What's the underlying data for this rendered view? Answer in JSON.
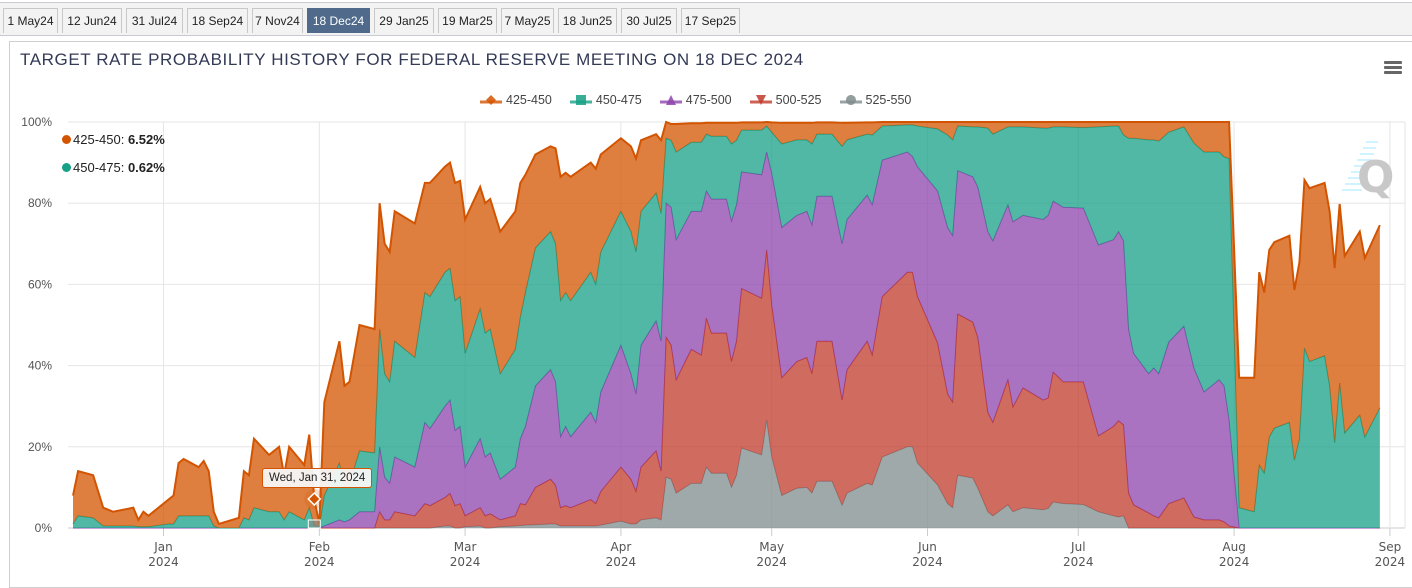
{
  "tabs": [
    {
      "label": "1 May24",
      "active": false
    },
    {
      "label": "12 Jun24",
      "active": false
    },
    {
      "label": "31 Jul24",
      "active": false
    },
    {
      "label": "18 Sep24",
      "active": false
    },
    {
      "label": "7 Nov24",
      "active": false
    },
    {
      "label": "18 Dec24",
      "active": true
    },
    {
      "label": "29 Jan25",
      "active": false
    },
    {
      "label": "19 Mar25",
      "active": false
    },
    {
      "label": "7 May25",
      "active": false
    },
    {
      "label": "18 Jun25",
      "active": false
    },
    {
      "label": "30 Jul25",
      "active": false
    },
    {
      "label": "17 Sep25",
      "active": false
    }
  ],
  "menu_icon": "hamburger-menu-icon",
  "watermark": "Q",
  "hover_readout": {
    "items": [
      {
        "series": "425-450",
        "value": "6.52%",
        "color": "#d35400"
      },
      {
        "series": "450-475",
        "value": "0.62%",
        "color": "#16a085"
      }
    ],
    "date": "Wed, Jan 31, 2024"
  },
  "chart_data": {
    "type": "area",
    "stacked": true,
    "title": "TARGET RATE PROBABILITY HISTORY FOR FEDERAL RESERVE MEETING ON 18 DEC 2024",
    "xlabel": "",
    "ylabel": "",
    "legend_position": "top-center",
    "grid": true,
    "ylim": [
      0,
      100
    ],
    "y_ticks": [
      "0%",
      "20%",
      "40%",
      "60%",
      "80%",
      "100%"
    ],
    "y_tick_values": [
      0,
      20,
      40,
      60,
      80,
      100
    ],
    "xlim": [
      "2023-12-13",
      "2024-09-04"
    ],
    "x_ticks": [
      {
        "date": "2024-01-01",
        "month": "Jan",
        "year": "2024"
      },
      {
        "date": "2024-02-01",
        "month": "Feb",
        "year": "2024"
      },
      {
        "date": "2024-03-01",
        "month": "Mar",
        "year": "2024"
      },
      {
        "date": "2024-04-01",
        "month": "Apr",
        "year": "2024"
      },
      {
        "date": "2024-05-01",
        "month": "May",
        "year": "2024"
      },
      {
        "date": "2024-06-01",
        "month": "Jun",
        "year": "2024"
      },
      {
        "date": "2024-07-01",
        "month": "Jul",
        "year": "2024"
      },
      {
        "date": "2024-08-01",
        "month": "Aug",
        "year": "2024"
      },
      {
        "date": "2024-09-01",
        "month": "Sep",
        "year": "2024"
      }
    ],
    "series": [
      {
        "name": "425-450",
        "color": "#d35400",
        "marker": "diamond"
      },
      {
        "name": "450-475",
        "color": "#16a085",
        "marker": "square"
      },
      {
        "name": "475-500",
        "color": "#8e44ad",
        "marker": "triangle"
      },
      {
        "name": "500-525",
        "color": "#c0392b",
        "marker": "triangle-down"
      },
      {
        "name": "525-550",
        "color": "#7f8c8d",
        "marker": "circle"
      }
    ],
    "columns": [
      "date",
      "425-450",
      "450-475",
      "475-500",
      "500-525",
      "525-550"
    ],
    "rows": [
      [
        "2023-12-14",
        7,
        1,
        0,
        0,
        0
      ],
      [
        "2023-12-15",
        11,
        3,
        0,
        0,
        0
      ],
      [
        "2023-12-18",
        10.5,
        2.5,
        0,
        0,
        0
      ],
      [
        "2023-12-20",
        4.5,
        0.5,
        0,
        0,
        0
      ],
      [
        "2023-12-22",
        3.5,
        0.5,
        0,
        0,
        0
      ],
      [
        "2023-12-26",
        4.5,
        0.5,
        0,
        0,
        0
      ],
      [
        "2023-12-27",
        1.7,
        0.3,
        0,
        0,
        0
      ],
      [
        "2023-12-28",
        3.7,
        0.3,
        0,
        0,
        0
      ],
      [
        "2023-12-29",
        2.7,
        0.3,
        0,
        0,
        0
      ],
      [
        "2024-01-02",
        6,
        1,
        0,
        0,
        0
      ],
      [
        "2024-01-03",
        7,
        1,
        0,
        0,
        0
      ],
      [
        "2024-01-04",
        13,
        3,
        0,
        0,
        0
      ],
      [
        "2024-01-05",
        14,
        3,
        0,
        0,
        0
      ],
      [
        "2024-01-08",
        12,
        3,
        0,
        0,
        0
      ],
      [
        "2024-01-09",
        13.5,
        3,
        0,
        0,
        0
      ],
      [
        "2024-01-10",
        11,
        3,
        0,
        0,
        0
      ],
      [
        "2024-01-11",
        3.5,
        0.5,
        0,
        0,
        0
      ],
      [
        "2024-01-12",
        1,
        0,
        0,
        0,
        0
      ],
      [
        "2024-01-16",
        2.5,
        0,
        0,
        0,
        0
      ],
      [
        "2024-01-17",
        11.5,
        2.5,
        0,
        0,
        0
      ],
      [
        "2024-01-18",
        11,
        2,
        0,
        0,
        0
      ],
      [
        "2024-01-19",
        17,
        5,
        0,
        0,
        0
      ],
      [
        "2024-01-22",
        14,
        4,
        0,
        0,
        0
      ],
      [
        "2024-01-24",
        16,
        4,
        0,
        0,
        0
      ],
      [
        "2024-01-25",
        11,
        2,
        0,
        0,
        0
      ],
      [
        "2024-01-26",
        16,
        4,
        0,
        0,
        0
      ],
      [
        "2024-01-29",
        13.5,
        2,
        0,
        0,
        0
      ],
      [
        "2024-01-30",
        18,
        5,
        0,
        0,
        0
      ],
      [
        "2024-01-31",
        6.52,
        0.62,
        0,
        0,
        0
      ],
      [
        "2024-02-01",
        0.7,
        0.3,
        0,
        0,
        0
      ],
      [
        "2024-02-02",
        23,
        7.5,
        0.5,
        0,
        0
      ],
      [
        "2024-02-05",
        30,
        14,
        2,
        0,
        0
      ],
      [
        "2024-02-06",
        25,
        8.5,
        1.5,
        0,
        0
      ],
      [
        "2024-02-07",
        25,
        9,
        2,
        0,
        0
      ],
      [
        "2024-02-09",
        31,
        15,
        4,
        0,
        0
      ],
      [
        "2024-02-12",
        30.5,
        14.5,
        4,
        0,
        0
      ],
      [
        "2024-02-13",
        31,
        29,
        16,
        4,
        0
      ],
      [
        "2024-02-14",
        32,
        25.5,
        10.5,
        2,
        0
      ],
      [
        "2024-02-15",
        32,
        25,
        9,
        2,
        0
      ],
      [
        "2024-02-16",
        32,
        28.5,
        13.5,
        4,
        0
      ],
      [
        "2024-02-20",
        33,
        27,
        12,
        3,
        0
      ],
      [
        "2024-02-22",
        27,
        32,
        20,
        6,
        0
      ],
      [
        "2024-02-23",
        28,
        32.5,
        19,
        5.5,
        0
      ],
      [
        "2024-02-26",
        26,
        33,
        22.5,
        7,
        0.5
      ],
      [
        "2024-02-27",
        26,
        32.5,
        23,
        8,
        0.5
      ],
      [
        "2024-02-28",
        29,
        32,
        18.5,
        5.5,
        0
      ],
      [
        "2024-02-29",
        28.5,
        32,
        19,
        6,
        0
      ],
      [
        "2024-03-01",
        33,
        28,
        12,
        2.7,
        0.3
      ],
      [
        "2024-03-04",
        30,
        32,
        17,
        4.5,
        0.5
      ],
      [
        "2024-03-05",
        32,
        30.5,
        14.5,
        3,
        0
      ],
      [
        "2024-03-06",
        32,
        30.5,
        15,
        3.5,
        0
      ],
      [
        "2024-03-08",
        35,
        26,
        10,
        1.7,
        0.3
      ],
      [
        "2024-03-11",
        34,
        29,
        12,
        2.5,
        0.5
      ],
      [
        "2024-03-12",
        33,
        30,
        16,
        5.4,
        0.6
      ],
      [
        "2024-03-13",
        29,
        33,
        19.3,
        5,
        0.7
      ],
      [
        "2024-03-15",
        23,
        34,
        25,
        9.2,
        0.8
      ],
      [
        "2024-03-18",
        21,
        34,
        27,
        11,
        1
      ],
      [
        "2024-03-19",
        23.5,
        34,
        25.5,
        9.5,
        1
      ],
      [
        "2024-03-20",
        30.5,
        33.5,
        17.5,
        4.5,
        0.5
      ],
      [
        "2024-03-21",
        29.5,
        33,
        19.5,
        5,
        0.5
      ],
      [
        "2024-03-22",
        30.5,
        33.5,
        17.5,
        4.5,
        0.5
      ],
      [
        "2024-03-26",
        27,
        34.5,
        21.5,
        6.5,
        0.5
      ],
      [
        "2024-03-27",
        28.5,
        34,
        20,
        5.5,
        0.5
      ],
      [
        "2024-03-28",
        24,
        34.5,
        24.5,
        8.3,
        0.7
      ],
      [
        "2024-04-01",
        18,
        33,
        30,
        13.3,
        1.7
      ],
      [
        "2024-04-03",
        21,
        35,
        26,
        11,
        1
      ],
      [
        "2024-04-04",
        23,
        35,
        24,
        8,
        1
      ],
      [
        "2024-04-05",
        17.5,
        33,
        30,
        13,
        2
      ],
      [
        "2024-04-08",
        14.5,
        31.5,
        32,
        16.5,
        2.5
      ],
      [
        "2024-04-09",
        18,
        31.5,
        32,
        12,
        2
      ],
      [
        "2024-04-10",
        4,
        16,
        33,
        34.5,
        12.5
      ],
      [
        "2024-04-11",
        4,
        16.5,
        34,
        33,
        12
      ],
      [
        "2024-04-12",
        6.9,
        21.6,
        34.5,
        27.9,
        8.6
      ],
      [
        "2024-04-15",
        4.7,
        17,
        34,
        33,
        11
      ],
      [
        "2024-04-17",
        4.7,
        17,
        35.4,
        31.6,
        11
      ],
      [
        "2024-04-18",
        2.8,
        14,
        31.3,
        36.7,
        15
      ],
      [
        "2024-04-19",
        3.3,
        15.5,
        33,
        34.5,
        13.5
      ],
      [
        "2024-04-22",
        3.3,
        15.5,
        33,
        34.5,
        13.5
      ],
      [
        "2024-04-23",
        5.2,
        19,
        34.6,
        31,
        10
      ],
      [
        "2024-04-24",
        4.3,
        15.9,
        33.6,
        33,
        13
      ],
      [
        "2024-04-25",
        1.9,
        10.3,
        28.7,
        39.3,
        19.7
      ],
      [
        "2024-04-29",
        1.9,
        11,
        30.4,
        38.6,
        18
      ],
      [
        "2024-04-30",
        1,
        6.4,
        24.1,
        41.9,
        26.6
      ],
      [
        "2024-05-01",
        2.4,
        10.1,
        32.4,
        37.5,
        17.5
      ],
      [
        "2024-05-03",
        5.2,
        20.6,
        37,
        29,
        8
      ],
      [
        "2024-05-06",
        4.2,
        18.6,
        36,
        31.2,
        9.8
      ],
      [
        "2024-05-08",
        4.2,
        17.6,
        36,
        32,
        10
      ],
      [
        "2024-05-09",
        5.2,
        20,
        36.6,
        29.4,
        8.6
      ],
      [
        "2024-05-10",
        2.9,
        15.3,
        35.7,
        34.5,
        11.5
      ],
      [
        "2024-05-13",
        2.9,
        15.3,
        35.7,
        34.5,
        11.5
      ],
      [
        "2024-05-15",
        5.8,
        24,
        38.5,
        25.9,
        5.6
      ],
      [
        "2024-05-16",
        4.2,
        19.6,
        37,
        30.4,
        8.6
      ],
      [
        "2024-05-20",
        2.9,
        15,
        36,
        35,
        11
      ],
      [
        "2024-05-21",
        3.1,
        17.2,
        37,
        32,
        10.6
      ],
      [
        "2024-05-23",
        1,
        8.4,
        33.6,
        39.5,
        17.5
      ],
      [
        "2024-05-28",
        0.7,
        6.7,
        29.6,
        43,
        20
      ],
      [
        "2024-05-29",
        0.7,
        7.8,
        28.5,
        43,
        20
      ],
      [
        "2024-05-30",
        1,
        10,
        32,
        41,
        16
      ],
      [
        "2024-06-03",
        1.7,
        15.3,
        37.4,
        35,
        10.6
      ],
      [
        "2024-06-05",
        3.2,
        22.8,
        41,
        27,
        6
      ],
      [
        "2024-06-06",
        4.4,
        23.6,
        41,
        26,
        5
      ],
      [
        "2024-06-07",
        1,
        11,
        35.3,
        39.7,
        13
      ],
      [
        "2024-06-10",
        1.2,
        12.3,
        35.8,
        38.4,
        12.3
      ],
      [
        "2024-06-11",
        1.2,
        14.8,
        37,
        37.2,
        9.8
      ],
      [
        "2024-06-13",
        1.5,
        25.5,
        44.5,
        24.5,
        4
      ],
      [
        "2024-06-14",
        3,
        26.3,
        44.7,
        23,
        3
      ],
      [
        "2024-06-17",
        1.2,
        19.2,
        43.1,
        30.8,
        5.7
      ],
      [
        "2024-06-18",
        1.2,
        23.4,
        45.6,
        25.8,
        4
      ],
      [
        "2024-06-20",
        1.2,
        21.8,
        42.5,
        29.5,
        5
      ],
      [
        "2024-06-24",
        1.5,
        22.5,
        44.5,
        27,
        4.5
      ],
      [
        "2024-06-25",
        1.5,
        21.5,
        45,
        27.2,
        4.8
      ],
      [
        "2024-06-26",
        1.2,
        18.3,
        42.1,
        32,
        6.4
      ],
      [
        "2024-06-28",
        1.2,
        19.8,
        43,
        30,
        6
      ],
      [
        "2024-07-02",
        1.4,
        19.8,
        42.8,
        30.2,
        5.8
      ],
      [
        "2024-07-05",
        1.2,
        29.1,
        47,
        18.7,
        4
      ],
      [
        "2024-07-08",
        1,
        28,
        46,
        22,
        3
      ],
      [
        "2024-07-09",
        1,
        26,
        46.6,
        23.7,
        2.7
      ],
      [
        "2024-07-10",
        3.2,
        26.1,
        45.3,
        22.4,
        3
      ],
      [
        "2024-07-11",
        4,
        47,
        40.4,
        8.6,
        0
      ],
      [
        "2024-07-12",
        4,
        53,
        37.3,
        5.7,
        0
      ],
      [
        "2024-07-15",
        4.4,
        57.6,
        34.3,
        3.7,
        0
      ],
      [
        "2024-07-16",
        4.4,
        56.2,
        36.4,
        3,
        0
      ],
      [
        "2024-07-17",
        4.7,
        57.3,
        35.5,
        2.5,
        0
      ],
      [
        "2024-07-19",
        2.5,
        51.7,
        39.8,
        6,
        0
      ],
      [
        "2024-07-22",
        1.2,
        49.1,
        42.3,
        7.4,
        0
      ],
      [
        "2024-07-24",
        5.2,
        55.4,
        36.7,
        2.7,
        0
      ],
      [
        "2024-07-26",
        7.4,
        59.1,
        31.5,
        2,
        0
      ],
      [
        "2024-07-29",
        7.4,
        56.1,
        34.5,
        2,
        0
      ],
      [
        "2024-07-30",
        8.6,
        56.4,
        33.5,
        1.5,
        0
      ],
      [
        "2024-07-31",
        9,
        64.4,
        26.1,
        0.5,
        0
      ],
      [
        "2024-08-02",
        32,
        5,
        0,
        0,
        0
      ],
      [
        "2024-08-05",
        33,
        4,
        0,
        0,
        0
      ],
      [
        "2024-08-06",
        47.5,
        15.5,
        0,
        0,
        0
      ],
      [
        "2024-08-07",
        44.5,
        13.5,
        0,
        0,
        0
      ],
      [
        "2024-08-08",
        46.1,
        22.4,
        0,
        0,
        0
      ],
      [
        "2024-08-09",
        45.8,
        24.6,
        0,
        0,
        0
      ],
      [
        "2024-08-12",
        46,
        26,
        0,
        0,
        0
      ],
      [
        "2024-08-13",
        41.9,
        16.7,
        0,
        0,
        0
      ],
      [
        "2024-08-14",
        43.5,
        22,
        0,
        0,
        0
      ],
      [
        "2024-08-15",
        41.4,
        44.3,
        0,
        0,
        0
      ],
      [
        "2024-08-16",
        42.7,
        41,
        0,
        0,
        0
      ],
      [
        "2024-08-19",
        42.6,
        42.4,
        0,
        0,
        0
      ],
      [
        "2024-08-20",
        43,
        35,
        0,
        0,
        0
      ],
      [
        "2024-08-21",
        43,
        21,
        0,
        0,
        0
      ],
      [
        "2024-08-22",
        44.1,
        35.7,
        0,
        0,
        0
      ],
      [
        "2024-08-23",
        43.6,
        23.4,
        0,
        0,
        0
      ],
      [
        "2024-08-26",
        45.2,
        27.8,
        0,
        0,
        0
      ],
      [
        "2024-08-27",
        44.1,
        22.4,
        0,
        0,
        0
      ],
      [
        "2024-08-30",
        45,
        29.6,
        0,
        0,
        0
      ]
    ],
    "highlighted_date": "2024-01-31"
  }
}
